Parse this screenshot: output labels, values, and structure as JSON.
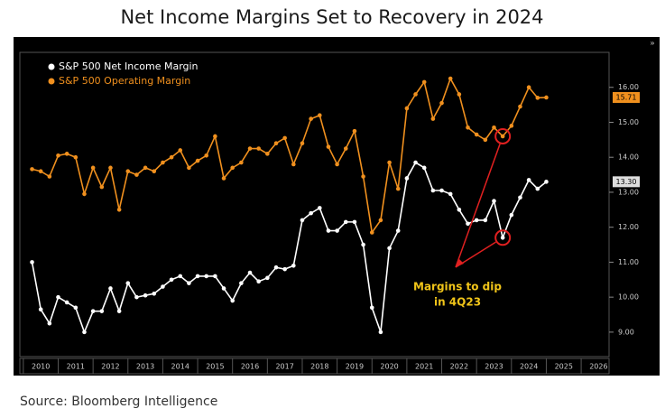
{
  "chart_data": {
    "type": "line",
    "title": "Net Income Margins Set to Recovery in 2024",
    "source": "Source: Bloomberg Intelligence",
    "annotation": [
      "Margins to dip",
      "in 4Q23"
    ],
    "x": [
      2010.25,
      2010.5,
      2010.75,
      2011,
      2011.25,
      2011.5,
      2011.75,
      2012,
      2012.25,
      2012.5,
      2012.75,
      2013,
      2013.25,
      2013.5,
      2013.75,
      2014,
      2014.25,
      2014.5,
      2014.75,
      2015,
      2015.25,
      2015.5,
      2015.75,
      2016,
      2016.25,
      2016.5,
      2016.75,
      2017,
      2017.25,
      2017.5,
      2017.75,
      2018,
      2018.25,
      2018.5,
      2018.75,
      2019,
      2019.25,
      2019.5,
      2019.75,
      2020,
      2020.25,
      2020.5,
      2020.75,
      2021,
      2021.25,
      2021.5,
      2021.75,
      2022,
      2022.25,
      2022.5,
      2022.75,
      2023,
      2023.25,
      2023.5,
      2023.75,
      2024,
      2024.25,
      2024.5,
      2024.75,
      2025
    ],
    "xlim": [
      2009.9,
      2026.8
    ],
    "xticks": [
      2010,
      2011,
      2012,
      2013,
      2014,
      2015,
      2016,
      2017,
      2018,
      2019,
      2020,
      2021,
      2022,
      2023,
      2024,
      2025,
      2026
    ],
    "ylim": [
      8.3,
      17
    ],
    "yticks": [
      {
        "value": 9,
        "label": "9.00"
      },
      {
        "value": 10,
        "label": "10.00"
      },
      {
        "value": 11,
        "label": "11.00"
      },
      {
        "value": 12,
        "label": "12.00"
      },
      {
        "value": 13,
        "label": "13.00"
      },
      {
        "value": 14,
        "label": "14.00"
      },
      {
        "value": 15,
        "label": "15.00"
      },
      {
        "value": 16,
        "label": "16.00"
      }
    ],
    "legend": "top-left",
    "series": [
      {
        "name": "S&P 500 Net Income Margin",
        "color": "#ffffff",
        "end_label": "13.30",
        "values": [
          11.0,
          9.65,
          9.25,
          10.0,
          9.85,
          9.7,
          9.0,
          9.6,
          9.6,
          10.25,
          9.6,
          10.4,
          10.0,
          10.05,
          10.1,
          10.3,
          10.5,
          10.6,
          10.4,
          10.6,
          10.6,
          10.6,
          10.25,
          9.9,
          10.4,
          10.7,
          10.45,
          10.55,
          10.85,
          10.8,
          10.9,
          12.2,
          12.4,
          12.55,
          11.9,
          11.9,
          12.15,
          12.15,
          11.5,
          9.7,
          9.0,
          11.4,
          11.9,
          13.4,
          13.85,
          13.7,
          13.05,
          13.05,
          12.95,
          12.5,
          12.1,
          12.2,
          12.2,
          12.75,
          11.7,
          12.35,
          12.85,
          13.35,
          13.1,
          13.3
        ]
      },
      {
        "name": "S&P 500 Operating Margin",
        "color": "#f0901e",
        "end_label": "15.71",
        "values": [
          13.66,
          13.6,
          13.45,
          14.05,
          14.1,
          14.0,
          12.95,
          13.7,
          13.15,
          13.7,
          12.5,
          13.6,
          13.5,
          13.7,
          13.6,
          13.85,
          14.0,
          14.2,
          13.7,
          13.9,
          14.05,
          14.6,
          13.4,
          13.7,
          13.85,
          14.25,
          14.25,
          14.1,
          14.4,
          14.55,
          13.8,
          14.4,
          15.1,
          15.2,
          14.3,
          13.8,
          14.25,
          14.75,
          13.45,
          11.85,
          12.2,
          13.85,
          13.1,
          15.4,
          15.8,
          16.15,
          15.1,
          15.55,
          16.25,
          15.8,
          14.85,
          14.65,
          14.5,
          14.85,
          14.6,
          14.9,
          15.45,
          16.0,
          15.7,
          15.71
        ]
      }
    ]
  }
}
